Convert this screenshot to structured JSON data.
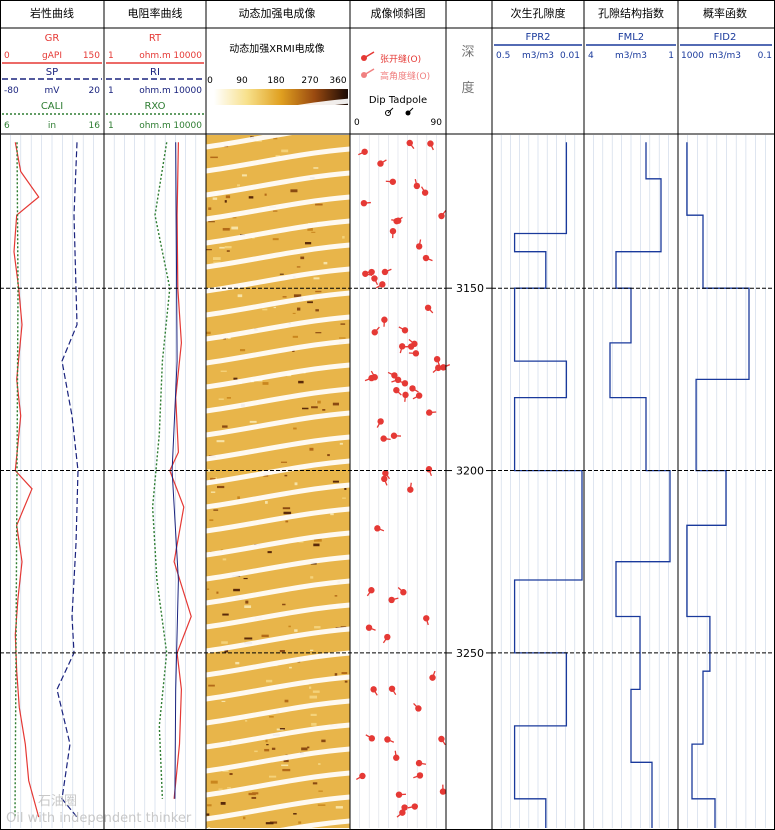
{
  "tracks": {
    "lithology": {
      "title": "岩性曲线",
      "curves": [
        {
          "name": "GR",
          "unit": "gAPI",
          "min": "0",
          "max": "150",
          "color": "#e53935"
        },
        {
          "name": "SP",
          "unit": "mV",
          "min": "-80",
          "max": "20",
          "color": "#1a237e"
        },
        {
          "name": "CALI",
          "unit": "in",
          "min": "6",
          "max": "16",
          "color": "#2e7d32"
        }
      ]
    },
    "resistivity": {
      "title": "电阻率曲线",
      "curves": [
        {
          "name": "RT",
          "unit": "ohm.m",
          "min": "1",
          "max": "10000",
          "color": "#e53935"
        },
        {
          "name": "RI",
          "unit": "ohm.m",
          "min": "1",
          "max": "10000",
          "color": "#1a237e"
        },
        {
          "name": "RXO",
          "unit": "ohm.m",
          "min": "1",
          "max": "10000",
          "color": "#2e7d32"
        }
      ]
    },
    "image": {
      "title": "动态加强电成像",
      "subtitle": "动态加强XRMI电成像",
      "scale_ticks": [
        "0",
        "90",
        "180",
        "270",
        "360"
      ]
    },
    "dip": {
      "title": "成像倾斜图",
      "legend": [
        {
          "label": "张开缝(O)",
          "color": "#e53935"
        },
        {
          "label": "高角度缝(O)",
          "color": "#f08080"
        }
      ],
      "scale_label": "Dip Tadpole",
      "scale_min": "0",
      "scale_max": "90"
    },
    "depth": {
      "title_top": "深",
      "title_bottom": "度",
      "labels": [
        "3150",
        "3200",
        "3250"
      ]
    },
    "fpr": {
      "title": "次生孔隙度",
      "curve": "FPR2",
      "min": "0.5",
      "unit": "m3/m3",
      "max": "0.01",
      "color": "#1a3a9c"
    },
    "fml": {
      "title": "孔隙结构指数",
      "curve": "FML2",
      "min": "4",
      "unit": "m3/m3",
      "max": "1",
      "color": "#1a3a9c"
    },
    "fid": {
      "title": "概率函数",
      "curve": "FID2",
      "min": "1000",
      "unit": "m3/m3",
      "max": "0.1",
      "color": "#1a3a9c"
    }
  },
  "watermark": {
    "line1": "石油圈",
    "line2": "Oil with independent thinker"
  },
  "chart_data": {
    "type": "line",
    "depth_range": [
      3108,
      3298
    ],
    "depth_lines": [
      3150,
      3200,
      3250
    ],
    "series": [
      {
        "name": "GR",
        "depth": [
          3110,
          3118,
          3125,
          3130,
          3140,
          3150,
          3160,
          3175,
          3185,
          3200,
          3205,
          3215,
          3225,
          3235,
          3245,
          3255,
          3265,
          3275,
          3285,
          3295
        ],
        "values": [
          20,
          28,
          55,
          22,
          18,
          25,
          30,
          22,
          28,
          20,
          45,
          22,
          30,
          24,
          20,
          22,
          26,
          35,
          40,
          55
        ]
      },
      {
        "name": "SP",
        "depth": [
          3110,
          3130,
          3150,
          3160,
          3170,
          3185,
          3200,
          3220,
          3240,
          3250,
          3260,
          3275,
          3290,
          3295
        ],
        "values": [
          -5,
          -8,
          -6,
          -5,
          -20,
          -10,
          -4,
          -6,
          -10,
          -8,
          -25,
          -12,
          -20,
          -5
        ]
      },
      {
        "name": "CALI",
        "depth": [
          3110,
          3150,
          3200,
          3250,
          3295
        ],
        "values": [
          7.5,
          7.6,
          7.5,
          7.4,
          7.3
        ]
      },
      {
        "name": "RT",
        "depth": [
          3110,
          3130,
          3150,
          3165,
          3180,
          3195,
          3200,
          3210,
          3225,
          3240,
          3250,
          3260,
          3275,
          3290
        ],
        "values": [
          900,
          800,
          850,
          1200,
          700,
          900,
          400,
          1500,
          600,
          3000,
          800,
          1200,
          1000,
          600
        ]
      },
      {
        "name": "RI",
        "depth": [
          3110,
          3140,
          3170,
          3200,
          3230,
          3260,
          3290
        ],
        "values": [
          700,
          750,
          800,
          500,
          900,
          700,
          650
        ]
      },
      {
        "name": "RXO",
        "depth": [
          3110,
          3130,
          3150,
          3170,
          3190,
          3210,
          3230,
          3250,
          3270,
          3290
        ],
        "values": [
          300,
          100,
          400,
          200,
          150,
          80,
          120,
          300,
          150,
          200
        ]
      },
      {
        "name": "FPR2",
        "depth": [
          3110,
          3135,
          3140,
          3150,
          3170,
          3180,
          3200,
          3230,
          3250,
          3270,
          3290
        ],
        "values": [
          0.02,
          0.2,
          0.05,
          0.2,
          0.02,
          0.2,
          0.01,
          0.2,
          0.02,
          0.2,
          0.05
        ]
      },
      {
        "name": "FML2",
        "depth": [
          3110,
          3120,
          3140,
          3150,
          3165,
          3180,
          3200,
          3225,
          3240,
          3260,
          3280
        ],
        "values": [
          2,
          1.5,
          3,
          2.5,
          3.2,
          2,
          1.2,
          3,
          2.2,
          2.5,
          1.8
        ]
      },
      {
        "name": "FID2",
        "depth": [
          3110,
          3130,
          3150,
          3175,
          3200,
          3215,
          3240,
          3255,
          3275,
          3290
        ],
        "values": [
          500,
          100,
          1,
          200,
          10,
          500,
          50,
          100,
          300,
          30
        ]
      }
    ]
  }
}
